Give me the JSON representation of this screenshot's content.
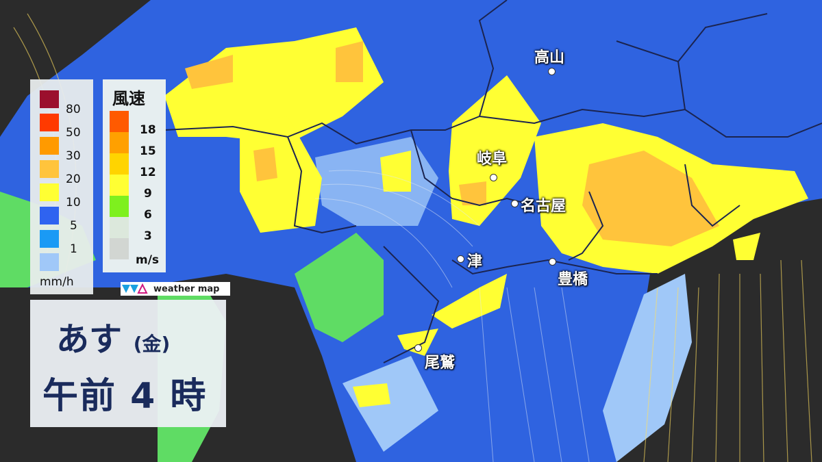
{
  "rain_legend": {
    "unit": "mm/h",
    "levels": [
      {
        "label": "80",
        "color": "#9b0f2d"
      },
      {
        "label": "50",
        "color": "#ff3a00"
      },
      {
        "label": "30",
        "color": "#ff9a00"
      },
      {
        "label": "20",
        "color": "#ffc43c"
      },
      {
        "label": "10",
        "color": "#ffff33"
      },
      {
        "label": "5",
        "color": "#2f63f0"
      },
      {
        "label": "1",
        "color": "#1a9af5"
      },
      {
        "label": "",
        "color": "#a0c8f8"
      }
    ]
  },
  "wind_legend": {
    "title": "風速",
    "unit": "m/s",
    "levels": [
      {
        "label": "18",
        "color": "#ff5a00"
      },
      {
        "label": "15",
        "color": "#ffa000"
      },
      {
        "label": "12",
        "color": "#ffd400"
      },
      {
        "label": "9",
        "color": "#ffff33"
      },
      {
        "label": "6",
        "color": "#7ef01e"
      },
      {
        "label": "3",
        "color": "#dce8dc"
      },
      {
        "label": "",
        "color": "#d2d6d2"
      }
    ]
  },
  "logo": "weather map",
  "date": {
    "day": "あす",
    "weekday": "(金)",
    "time": "午前 4 時"
  },
  "cities": [
    {
      "name": "高山"
    },
    {
      "name": "岐阜"
    },
    {
      "name": "名古屋"
    },
    {
      "name": "津"
    },
    {
      "name": "豊橋"
    },
    {
      "name": "尾鷲"
    }
  ]
}
